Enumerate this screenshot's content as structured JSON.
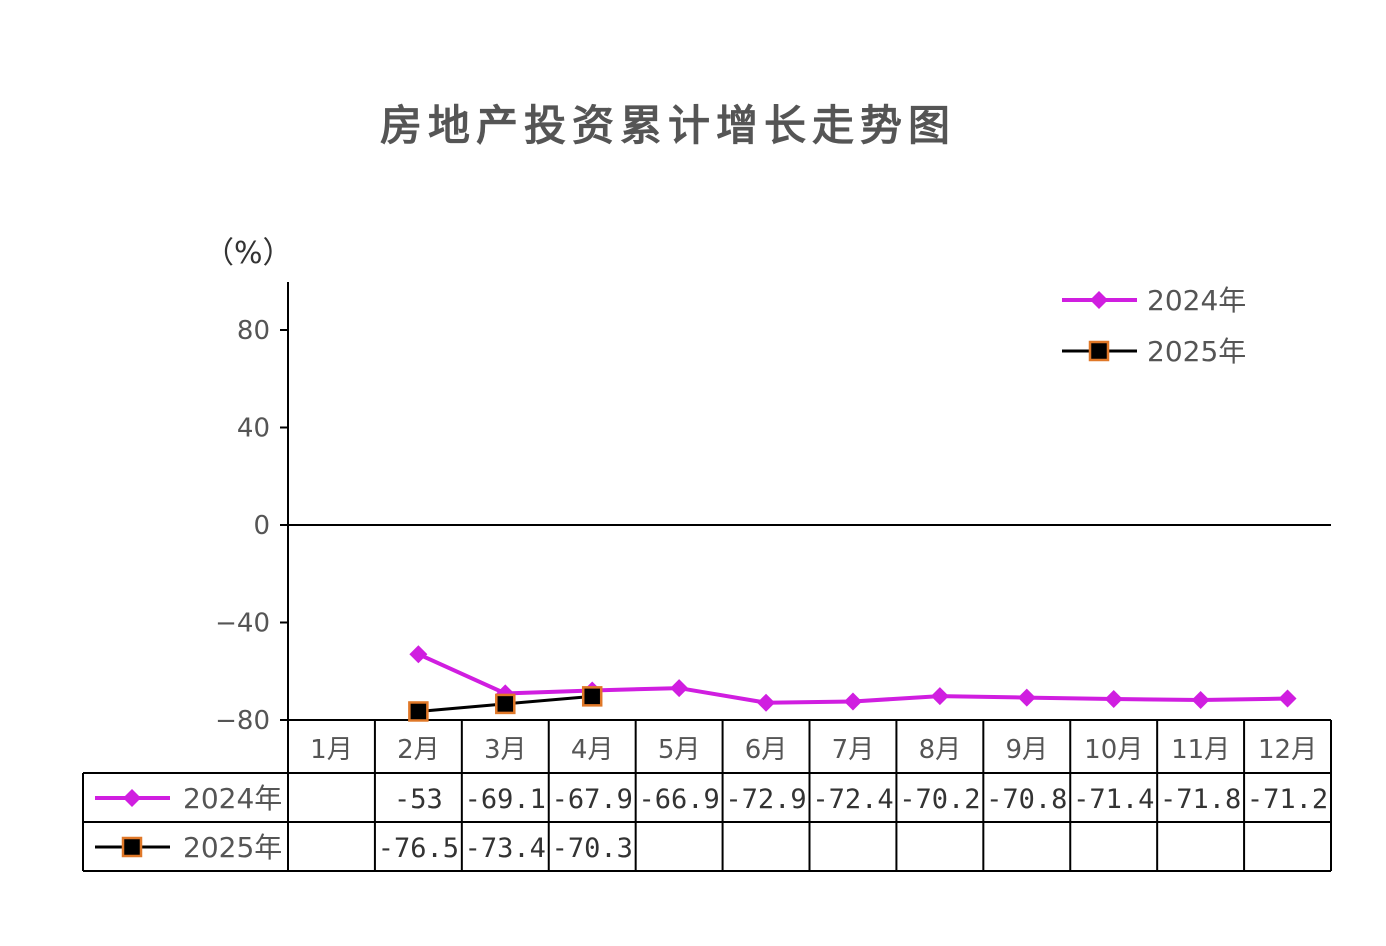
{
  "chart_data": {
    "type": "line",
    "title": "房地产投资累计增长走势图",
    "ylabel": "（%）",
    "ylim": [
      -80,
      100
    ],
    "yticks": [
      80,
      40,
      0,
      -40,
      -80
    ],
    "categories": [
      "1月",
      "2月",
      "3月",
      "4月",
      "5月",
      "6月",
      "7月",
      "8月",
      "9月",
      "10月",
      "11月",
      "12月"
    ],
    "series": [
      {
        "name": "2024年",
        "color": "#D01EE0",
        "marker": "diamond",
        "values": [
          null,
          -53,
          -69.1,
          -67.9,
          -66.9,
          -72.9,
          -72.4,
          -70.2,
          -70.8,
          -71.4,
          -71.8,
          -71.2
        ],
        "labels": [
          "",
          "-53",
          "-69.1",
          "-67.9",
          "-66.9",
          "-72.9",
          "-72.4",
          "-70.2",
          "-70.8",
          "-71.4",
          "-71.8",
          "-71.2"
        ]
      },
      {
        "name": "2025年",
        "color": "#000000",
        "marker_edge": "#E07828",
        "marker": "square",
        "values": [
          null,
          -76.5,
          -73.4,
          -70.3,
          null,
          null,
          null,
          null,
          null,
          null,
          null,
          null
        ],
        "labels": [
          "",
          "-76.5",
          "-73.4",
          "-70.3",
          "",
          "",
          "",
          "",
          "",
          "",
          "",
          ""
        ]
      }
    ],
    "legend": "top-right",
    "grid": false,
    "data_table": true
  }
}
